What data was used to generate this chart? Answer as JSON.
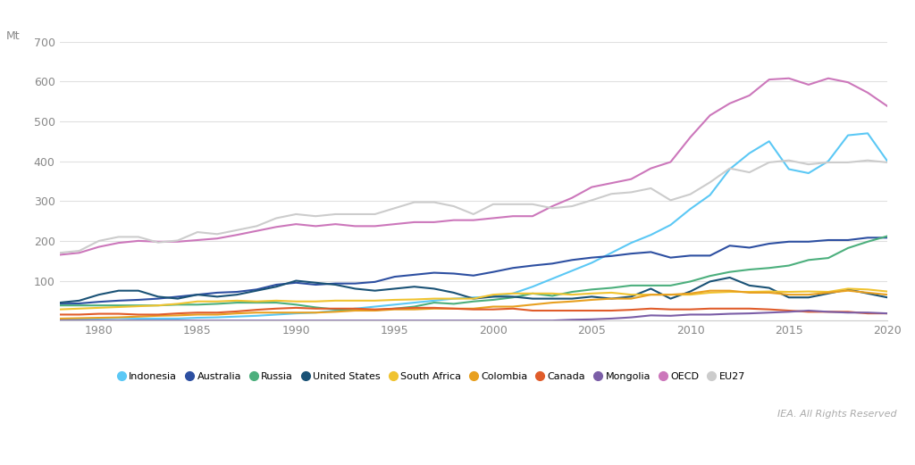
{
  "years": [
    1978,
    1979,
    1980,
    1981,
    1982,
    1983,
    1984,
    1985,
    1986,
    1987,
    1988,
    1989,
    1990,
    1991,
    1992,
    1993,
    1994,
    1995,
    1996,
    1997,
    1998,
    1999,
    2000,
    2001,
    2002,
    2003,
    2004,
    2005,
    2006,
    2007,
    2008,
    2009,
    2010,
    2011,
    2012,
    2013,
    2014,
    2015,
    2016,
    2017,
    2018,
    2019,
    2020
  ],
  "series": {
    "Indonesia": [
      2,
      3,
      5,
      6,
      5,
      5,
      5,
      7,
      8,
      10,
      12,
      15,
      18,
      20,
      25,
      30,
      35,
      40,
      45,
      50,
      55,
      58,
      60,
      68,
      85,
      105,
      125,
      145,
      170,
      195,
      215,
      240,
      280,
      315,
      380,
      420,
      450,
      380,
      370,
      400,
      465,
      470,
      400
    ],
    "Australia": [
      42,
      43,
      47,
      50,
      52,
      55,
      60,
      65,
      70,
      72,
      78,
      90,
      95,
      90,
      93,
      93,
      97,
      110,
      115,
      120,
      118,
      113,
      122,
      132,
      138,
      143,
      152,
      158,
      162,
      168,
      172,
      158,
      163,
      163,
      188,
      183,
      193,
      198,
      198,
      202,
      202,
      208,
      208
    ],
    "Russia": [
      38,
      38,
      38,
      38,
      38,
      38,
      40,
      40,
      42,
      45,
      45,
      45,
      40,
      33,
      28,
      26,
      26,
      30,
      35,
      45,
      42,
      48,
      52,
      58,
      68,
      62,
      72,
      78,
      82,
      88,
      88,
      88,
      98,
      112,
      122,
      128,
      132,
      138,
      152,
      157,
      182,
      198,
      212
    ],
    "United States": [
      45,
      50,
      65,
      75,
      75,
      60,
      55,
      65,
      60,
      65,
      75,
      85,
      100,
      95,
      90,
      80,
      75,
      80,
      85,
      80,
      70,
      55,
      60,
      60,
      55,
      55,
      55,
      60,
      55,
      60,
      80,
      55,
      73,
      98,
      108,
      88,
      82,
      58,
      58,
      68,
      78,
      68,
      58
    ],
    "South Africa": [
      28,
      30,
      32,
      34,
      36,
      38,
      42,
      48,
      48,
      50,
      48,
      50,
      48,
      48,
      50,
      50,
      50,
      52,
      53,
      55,
      55,
      55,
      65,
      68,
      68,
      68,
      65,
      68,
      70,
      65,
      65,
      65,
      65,
      70,
      72,
      72,
      73,
      72,
      73,
      72,
      80,
      78,
      73
    ],
    "Colombia": [
      5,
      6,
      7,
      8,
      10,
      12,
      13,
      15,
      15,
      18,
      20,
      20,
      20,
      20,
      22,
      25,
      25,
      28,
      28,
      30,
      30,
      30,
      35,
      35,
      40,
      45,
      48,
      52,
      55,
      55,
      65,
      65,
      68,
      75,
      75,
      70,
      70,
      65,
      65,
      70,
      75,
      70,
      65
    ],
    "Canada": [
      15,
      15,
      17,
      17,
      15,
      15,
      18,
      20,
      20,
      23,
      27,
      30,
      32,
      30,
      30,
      30,
      28,
      30,
      32,
      32,
      30,
      28,
      28,
      30,
      25,
      25,
      25,
      25,
      25,
      27,
      30,
      28,
      28,
      30,
      30,
      30,
      28,
      25,
      22,
      22,
      22,
      18,
      18
    ],
    "Mongolia": [
      0,
      0,
      0,
      0,
      0,
      0,
      0,
      0,
      0,
      0,
      0,
      0,
      0,
      0,
      0,
      0,
      0,
      0,
      0,
      0,
      0,
      0,
      0,
      0,
      0,
      0,
      2,
      3,
      5,
      8,
      13,
      12,
      15,
      15,
      17,
      18,
      20,
      22,
      25,
      22,
      20,
      20,
      18
    ],
    "OECD": [
      165,
      170,
      185,
      195,
      200,
      198,
      198,
      202,
      206,
      215,
      225,
      235,
      242,
      237,
      242,
      237,
      237,
      242,
      247,
      247,
      252,
      252,
      257,
      262,
      262,
      287,
      308,
      335,
      345,
      355,
      382,
      398,
      460,
      515,
      545,
      565,
      605,
      608,
      592,
      608,
      598,
      572,
      538
    ],
    "EU27": [
      170,
      175,
      200,
      210,
      210,
      196,
      201,
      222,
      217,
      227,
      237,
      257,
      267,
      262,
      267,
      267,
      267,
      282,
      297,
      297,
      287,
      267,
      292,
      292,
      292,
      282,
      287,
      302,
      318,
      322,
      332,
      302,
      317,
      347,
      382,
      372,
      397,
      402,
      392,
      397,
      397,
      402,
      397
    ]
  },
  "colors": {
    "Indonesia": "#5bc8f5",
    "Australia": "#2d4fa1",
    "Russia": "#4caf7d",
    "United States": "#1a5276",
    "South Africa": "#f0c330",
    "Colombia": "#e8a020",
    "Canada": "#e05c2a",
    "Mongolia": "#7b5ea7",
    "OECD": "#cc77bb",
    "EU27": "#cccccc"
  },
  "ylabel": "Mt",
  "ylim": [
    0,
    700
  ],
  "yticks": [
    0,
    100,
    200,
    300,
    400,
    500,
    600,
    700
  ],
  "xlim": [
    1978,
    2020
  ],
  "xticks": [
    1980,
    1985,
    1990,
    1995,
    2000,
    2005,
    2010,
    2015,
    2020
  ],
  "background_color": "#ffffff",
  "grid_color": "#e0e0e0",
  "watermark": "IEA. All Rights Reserved"
}
